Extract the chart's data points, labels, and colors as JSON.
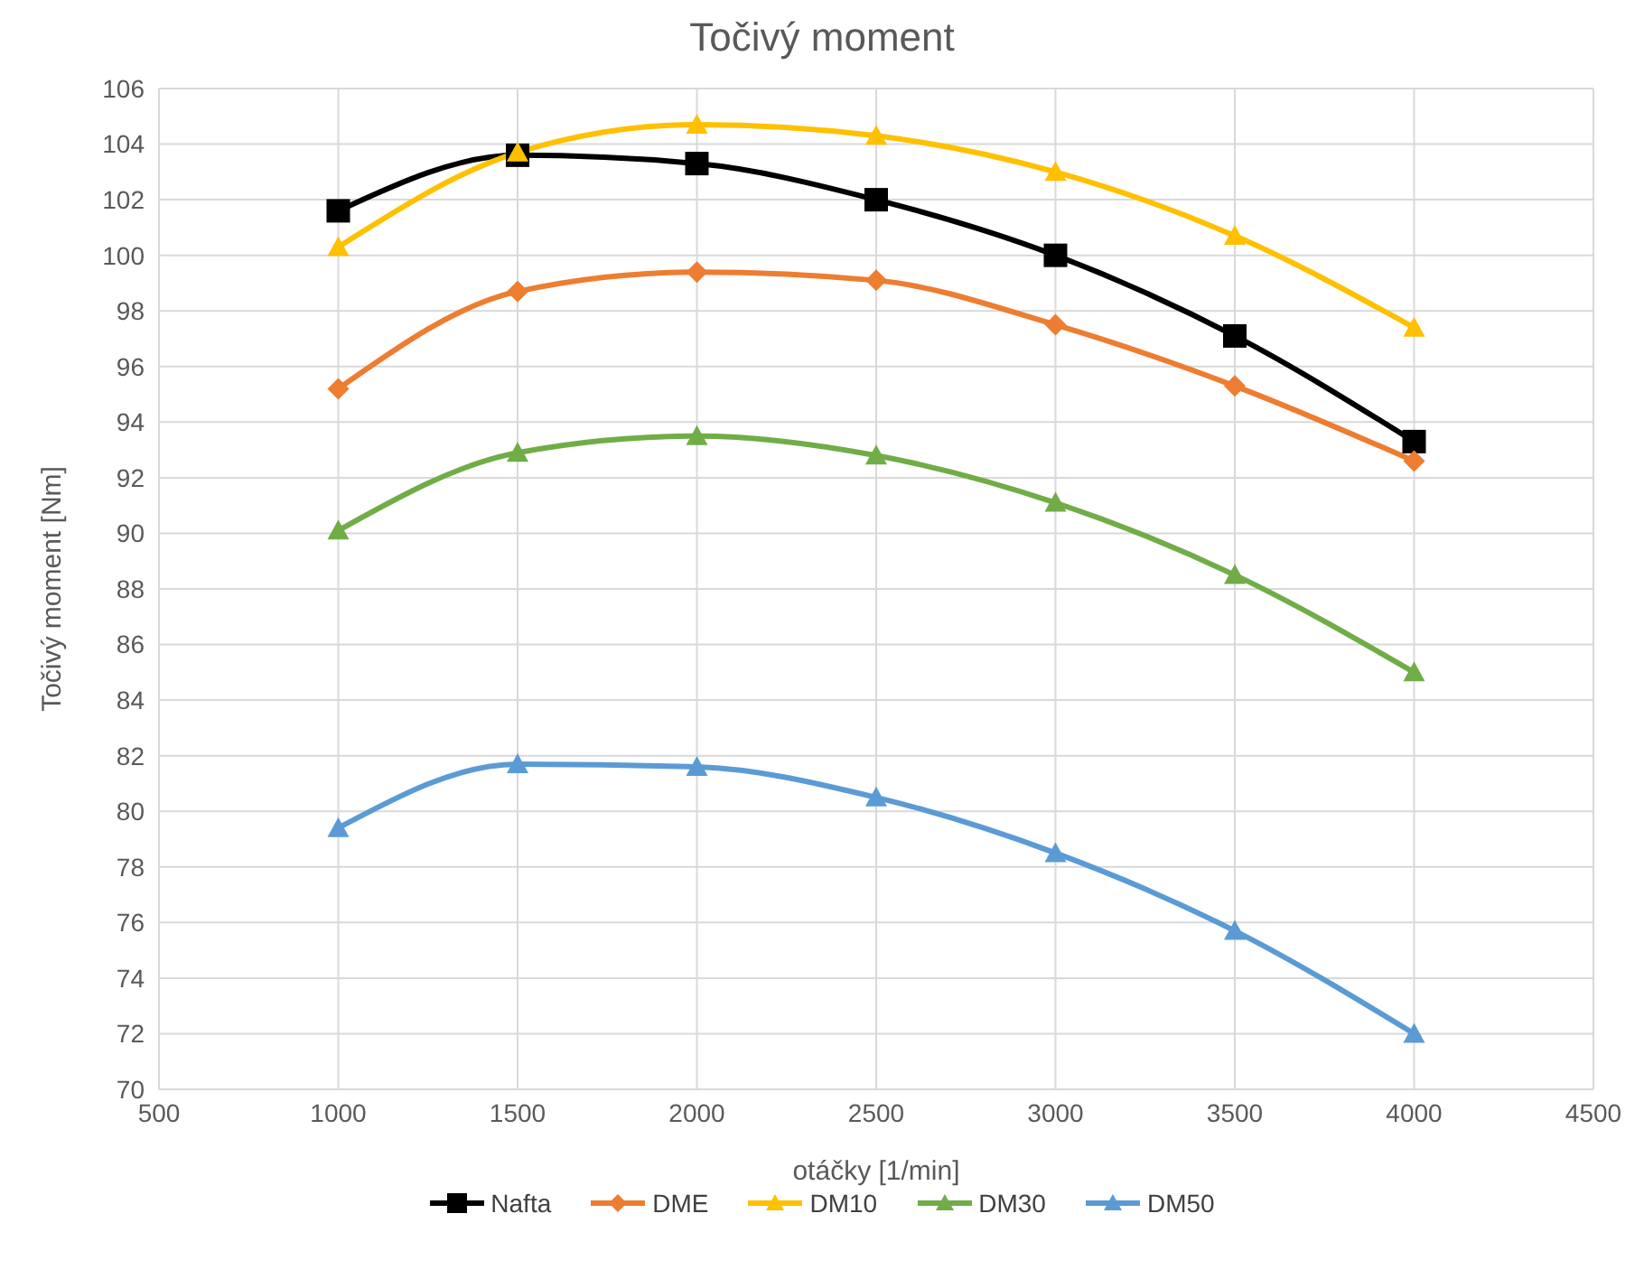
{
  "chart_data": {
    "type": "line",
    "title": "Točivý moment",
    "xlabel": "otáčky [1/min]",
    "ylabel": "Točivý moment [Nm]",
    "x": [
      1000,
      1500,
      2000,
      2500,
      3000,
      3500,
      4000
    ],
    "xlim": [
      500,
      4500
    ],
    "xticks": [
      500,
      1000,
      1500,
      2000,
      2500,
      3000,
      3500,
      4000,
      4500
    ],
    "ylim": [
      70,
      106
    ],
    "yticks": [
      70,
      72,
      74,
      76,
      78,
      80,
      82,
      84,
      86,
      88,
      90,
      92,
      94,
      96,
      98,
      100,
      102,
      104,
      106
    ],
    "grid": true,
    "legend": "bottom",
    "line_style": "solid",
    "series": [
      {
        "name": "Nafta",
        "color": "#000000",
        "marker": "square",
        "values": [
          101.6,
          103.6,
          103.3,
          102.0,
          100.0,
          97.1,
          93.3
        ]
      },
      {
        "name": "DME",
        "color": "#ed7d31",
        "marker": "diamond",
        "values": [
          95.2,
          98.7,
          99.4,
          99.1,
          97.5,
          95.3,
          92.6
        ]
      },
      {
        "name": "DM10",
        "color": "#ffc000",
        "marker": "triangle",
        "values": [
          100.3,
          103.7,
          104.7,
          104.3,
          103.0,
          100.7,
          97.4
        ]
      },
      {
        "name": "DM30",
        "color": "#70ad47",
        "marker": "triangle",
        "values": [
          90.1,
          92.9,
          93.5,
          92.8,
          91.1,
          88.5,
          85.0
        ]
      },
      {
        "name": "DM50",
        "color": "#5b9bd5",
        "marker": "triangle",
        "values": [
          79.4,
          81.7,
          81.6,
          80.5,
          78.5,
          75.7,
          72.0
        ]
      }
    ]
  }
}
